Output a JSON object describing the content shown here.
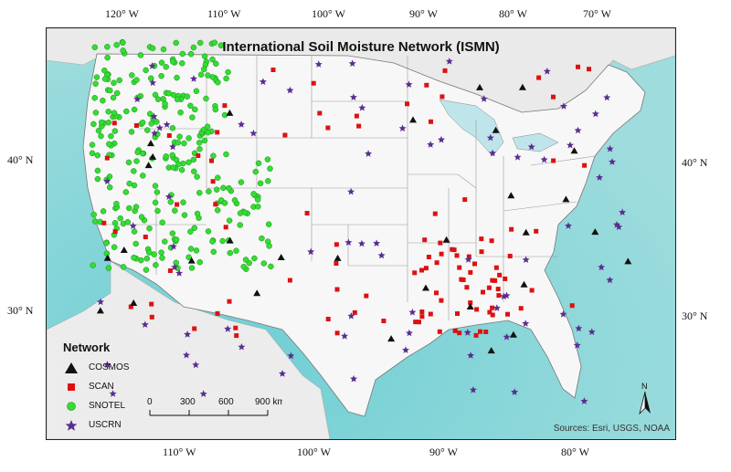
{
  "map": {
    "title": "International Soil Moisture Network (ISMN)",
    "source": "Sources: Esri, USGS, NOAA",
    "north_label": "N",
    "legend_title": "Network",
    "legend": [
      {
        "label": "COSMOS",
        "symbol": "triangle",
        "color": "#111111"
      },
      {
        "label": "SCAN",
        "symbol": "square",
        "color": "#dd1111"
      },
      {
        "label": "SNOTEL",
        "symbol": "circle",
        "color": "#33dd33"
      },
      {
        "label": "USCRN",
        "symbol": "star",
        "color": "#5a2d91"
      }
    ],
    "scale": {
      "labels": [
        "0",
        "300",
        "600",
        "900 km"
      ]
    },
    "top_ticks": [
      "120° W",
      "110° W",
      "100° W",
      "90° W",
      "80° W",
      "70° W"
    ],
    "bottom_ticks": [
      "110° W",
      "100° W",
      "90° W",
      "80° W"
    ],
    "left_ticks": [
      "40° N",
      "30° N"
    ],
    "right_ticks": [
      "40° N",
      "30° N"
    ],
    "colors": {
      "ocean": "#8fd6d9",
      "land": "#f5f5f5",
      "border": "#999999"
    }
  }
}
